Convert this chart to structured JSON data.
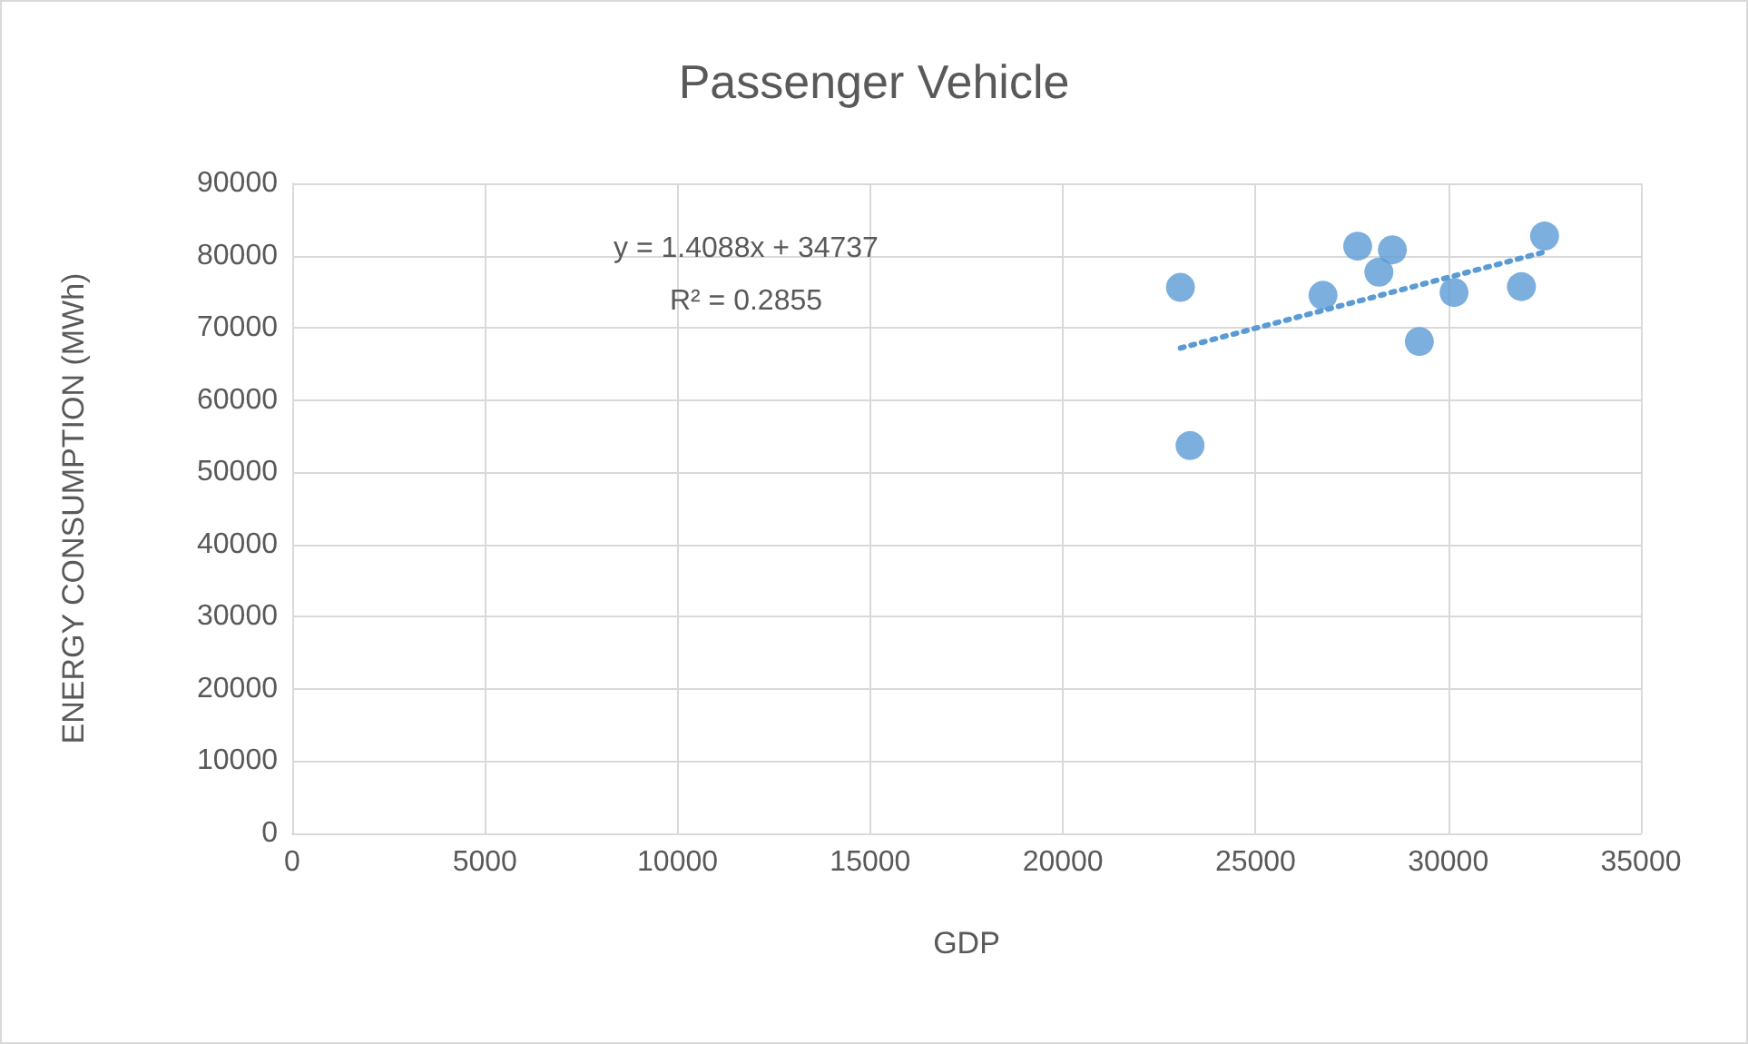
{
  "chart_data": {
    "type": "scatter",
    "title": "Passenger Vehicle",
    "xlabel": "GDP",
    "ylabel": "ENERGY CONSUMPTION (MWh)",
    "xlim": [
      0,
      35000
    ],
    "xticks": [
      0,
      5000,
      10000,
      15000,
      20000,
      25000,
      30000,
      35000
    ],
    "ylim": [
      0,
      90000
    ],
    "yticks": [
      0,
      10000,
      20000,
      30000,
      40000,
      50000,
      60000,
      70000,
      80000,
      90000
    ],
    "grid": true,
    "marker": "circle",
    "series": [
      {
        "color": "#5b9bd5",
        "x": [
          23050,
          23300,
          26750,
          27650,
          28200,
          28550,
          29250,
          30150,
          31900,
          32500
        ],
        "values": [
          75600,
          53700,
          74500,
          81300,
          77700,
          80800,
          68100,
          74900,
          75700,
          82700
        ]
      },
      {
        "type": "line",
        "color": "#5b9bd5",
        "line_style": "dotted",
        "marker": "none",
        "x": [
          23050,
          32500
        ],
        "values": [
          67200,
          80500
        ]
      }
    ],
    "annotations": [
      "y = 1.4088x + 34737",
      "R² = 0.2855"
    ]
  }
}
